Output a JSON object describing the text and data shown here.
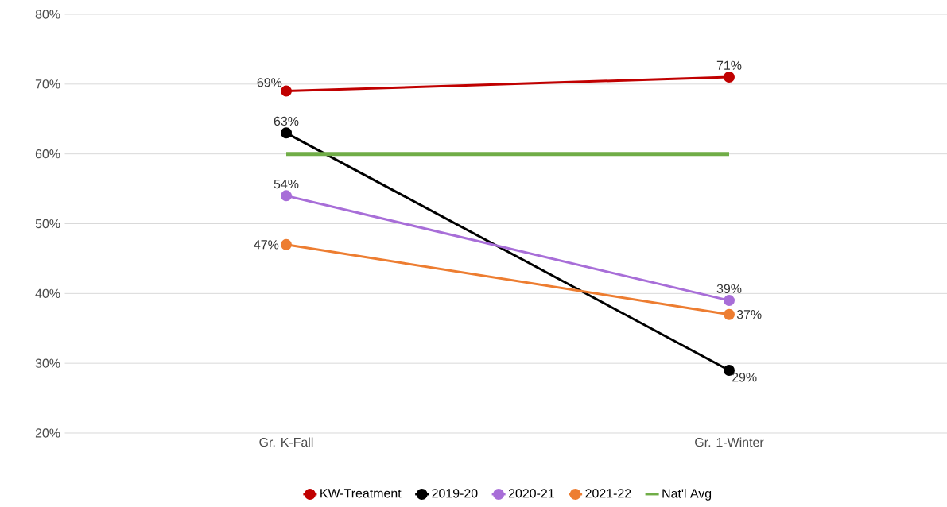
{
  "chart_data": {
    "type": "line",
    "categories": [
      "Gr. K-Fall",
      "Gr. 1-Winter"
    ],
    "series": [
      {
        "name": "KW-Treatment",
        "color": "#c00000",
        "values": [
          69,
          71
        ],
        "value_labels": [
          "69%",
          "71%"
        ],
        "marker": "circle"
      },
      {
        "name": "2019-20",
        "color": "#000000",
        "values": [
          63,
          29
        ],
        "value_labels": [
          "63%",
          "29%"
        ],
        "marker": "circle"
      },
      {
        "name": "2020-21",
        "color": "#a86ed8",
        "values": [
          54,
          39
        ],
        "value_labels": [
          "54%",
          "39%"
        ],
        "marker": "circle"
      },
      {
        "name": "2021-22",
        "color": "#ed7d31",
        "values": [
          47,
          37
        ],
        "value_labels": [
          "47%",
          "37%"
        ],
        "marker": "circle"
      },
      {
        "name": "Nat'l Avg",
        "color": "#70ad47",
        "values": [
          60,
          60
        ],
        "marker": "none"
      }
    ],
    "ylim": [
      20,
      80
    ],
    "yticks": [
      {
        "value": 20,
        "label": "20%"
      },
      {
        "value": 30,
        "label": "30%"
      },
      {
        "value": 40,
        "label": "40%"
      },
      {
        "value": 50,
        "label": "50%"
      },
      {
        "value": 60,
        "label": "60%"
      },
      {
        "value": 70,
        "label": "70%"
      },
      {
        "value": 80,
        "label": "80%"
      }
    ],
    "grid": "y",
    "legend": "bottom"
  }
}
